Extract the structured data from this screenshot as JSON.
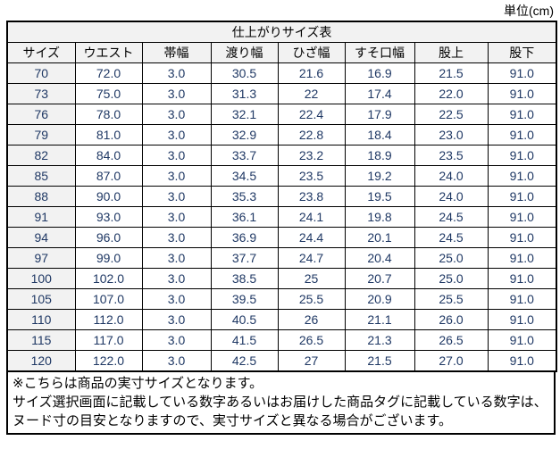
{
  "page": {
    "unit_label": "単位(cm)"
  },
  "table": {
    "title": "仕上がりサイズ表",
    "columns": [
      "サイズ",
      "ウエスト",
      "帯幅",
      "渡り幅",
      "ひざ幅",
      "すそ口幅",
      "股上",
      "股下"
    ],
    "rows": [
      [
        "70",
        "72.0",
        "3.0",
        "30.5",
        "21.6",
        "16.9",
        "21.5",
        "91.0"
      ],
      [
        "73",
        "75.0",
        "3.0",
        "31.3",
        "22",
        "17.4",
        "22.0",
        "91.0"
      ],
      [
        "76",
        "78.0",
        "3.0",
        "32.1",
        "22.4",
        "17.9",
        "22.5",
        "91.0"
      ],
      [
        "79",
        "81.0",
        "3.0",
        "32.9",
        "22.8",
        "18.4",
        "23.0",
        "91.0"
      ],
      [
        "82",
        "84.0",
        "3.0",
        "33.7",
        "23.2",
        "18.9",
        "23.5",
        "91.0"
      ],
      [
        "85",
        "87.0",
        "3.0",
        "34.5",
        "23.5",
        "19.2",
        "24.0",
        "91.0"
      ],
      [
        "88",
        "90.0",
        "3.0",
        "35.3",
        "23.8",
        "19.5",
        "24.0",
        "91.0"
      ],
      [
        "91",
        "93.0",
        "3.0",
        "36.1",
        "24.1",
        "19.8",
        "24.5",
        "91.0"
      ],
      [
        "94",
        "96.0",
        "3.0",
        "36.9",
        "24.4",
        "20.1",
        "24.5",
        "91.0"
      ],
      [
        "97",
        "99.0",
        "3.0",
        "37.7",
        "24.7",
        "20.4",
        "25.0",
        "91.0"
      ],
      [
        "100",
        "102.0",
        "3.0",
        "38.5",
        "25",
        "20.7",
        "25.0",
        "91.0"
      ],
      [
        "105",
        "107.0",
        "3.0",
        "39.5",
        "25.5",
        "20.9",
        "25.5",
        "91.0"
      ],
      [
        "110",
        "112.0",
        "3.0",
        "40.5",
        "26",
        "21.1",
        "26.0",
        "91.0"
      ],
      [
        "115",
        "117.0",
        "3.0",
        "41.5",
        "26.5",
        "21.3",
        "26.5",
        "91.0"
      ],
      [
        "120",
        "122.0",
        "3.0",
        "42.5",
        "27",
        "21.5",
        "27.0",
        "91.0"
      ]
    ]
  },
  "notes": {
    "lines": [
      "※こちらは商品の実寸サイズとなります。",
      "サイズ選択画面に記載している数字あるいはお届けした商品タグに記載している数字は、",
      "ヌード寸の目安となりますので、実寸サイズと異なる場合がございます。"
    ]
  },
  "colors": {
    "shaded_bg": "#f2f2f2",
    "border": "#000000",
    "data_text": "#1f3864",
    "heading_text": "#000000"
  }
}
